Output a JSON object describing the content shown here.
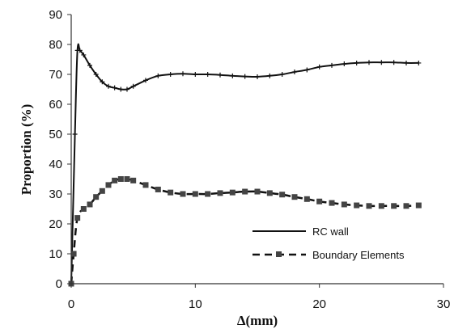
{
  "chart_data": {
    "type": "line",
    "xlabel": "Δ(mm)",
    "ylabel": "Proportion (%)",
    "xlim": [
      0,
      30
    ],
    "ylim": [
      0,
      90
    ],
    "xticks": [
      0,
      10,
      20,
      30
    ],
    "yticks": [
      0,
      10,
      20,
      30,
      40,
      50,
      60,
      70,
      80,
      90
    ],
    "grid": false,
    "legend_position": "bottom-right",
    "series": [
      {
        "name": "RC wall",
        "style": "solid",
        "marker": "plus",
        "color": "#111111",
        "x": [
          0.0,
          0.3,
          0.5,
          0.7,
          1.0,
          1.5,
          2.0,
          2.5,
          3.0,
          3.5,
          4.0,
          4.5,
          5.0,
          6.0,
          7.0,
          8.0,
          9.0,
          10.0,
          11.0,
          12.0,
          13.0,
          14.0,
          15.0,
          16.0,
          17.0,
          18.0,
          19.0,
          20.0,
          21.0,
          22.0,
          23.0,
          24.0,
          25.0,
          26.0,
          27.0,
          28.0
        ],
        "values": [
          0,
          50,
          78,
          78,
          76.5,
          73,
          70,
          67.5,
          66,
          65.5,
          65,
          65,
          66,
          68,
          69.5,
          70,
          70.2,
          70,
          70,
          69.8,
          69.5,
          69.3,
          69.2,
          69.5,
          70,
          70.8,
          71.5,
          72.5,
          73,
          73.5,
          73.8,
          74,
          74,
          74,
          73.8,
          73.8
        ]
      },
      {
        "name": "Boundary Elements",
        "style": "dashed",
        "marker": "square",
        "color": "#111111",
        "x": [
          0.0,
          0.2,
          0.5,
          1.0,
          1.5,
          2.0,
          2.5,
          3.0,
          3.5,
          4.0,
          4.5,
          5.0,
          6.0,
          7.0,
          8.0,
          9.0,
          10.0,
          11.0,
          12.0,
          13.0,
          14.0,
          15.0,
          16.0,
          17.0,
          18.0,
          19.0,
          20.0,
          21.0,
          22.0,
          23.0,
          24.0,
          25.0,
          26.0,
          27.0,
          28.0
        ],
        "values": [
          0,
          10,
          22,
          25,
          26.5,
          29,
          31,
          33,
          34.5,
          35,
          35,
          34.5,
          33,
          31.5,
          30.5,
          30,
          30,
          30,
          30.3,
          30.5,
          30.8,
          30.8,
          30.3,
          29.8,
          29,
          28.3,
          27.5,
          27,
          26.5,
          26.2,
          26,
          26,
          26,
          26,
          26.2
        ]
      }
    ]
  }
}
